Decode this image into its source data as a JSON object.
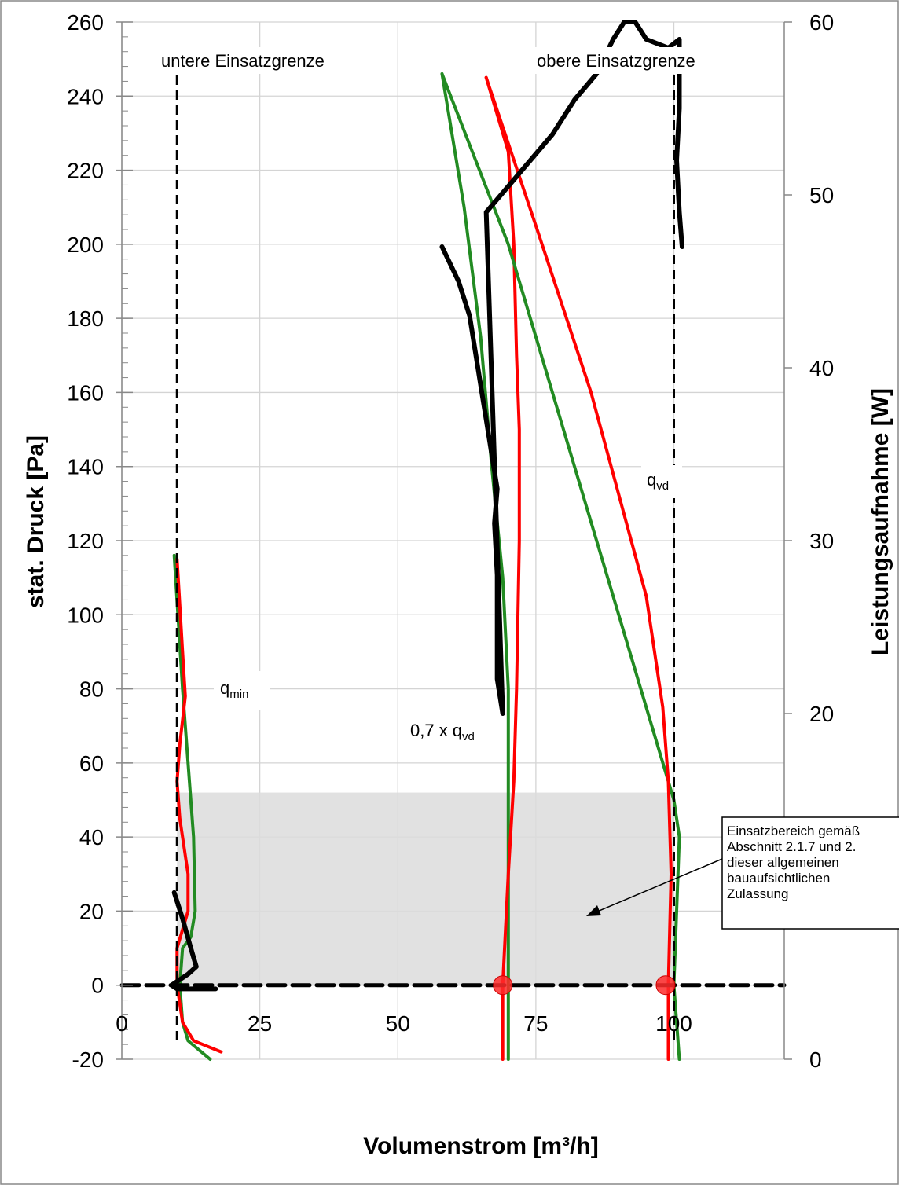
{
  "chart_data": {
    "type": "line",
    "title": "",
    "xlabel": "Volumenstrom [m³/h]",
    "ylabel": "stat. Druck [Pa]",
    "y2label": "Leistungsaufnahme [W]",
    "xlim": [
      0,
      120
    ],
    "ylim": [
      -20,
      260
    ],
    "y2lim": [
      0,
      60
    ],
    "xticks": [
      0,
      25,
      50,
      75,
      100
    ],
    "yticks": [
      -20,
      0,
      20,
      40,
      60,
      80,
      100,
      120,
      140,
      160,
      180,
      200,
      220,
      240,
      260
    ],
    "y2ticks": [
      0,
      20,
      30,
      40,
      50,
      60
    ],
    "grid": true,
    "annotations": {
      "lower_limit": "untere Einsatzgrenze",
      "upper_limit": "obere Einsatzgrenze",
      "qmin_main": "q",
      "qmin_sub": "min",
      "qvd_main": "q",
      "qvd_sub": "vd",
      "qvd07_main": "0,7 x q",
      "qvd07_sub": "vd"
    },
    "callout_lines": [
      "Einsatzbereich gemäß",
      "Abschnitt 2.1.7 und 2.",
      "dieser allgemeinen",
      "bauaufsichtlichen",
      "Zulassung"
    ],
    "operating_range": {
      "x": [
        10,
        100
      ],
      "y": [
        0,
        52
      ]
    },
    "limit_lines_x": [
      10,
      100
    ],
    "operating_points": [
      {
        "x": 69,
        "y": 0
      },
      {
        "x": 98.5,
        "y": 0
      }
    ],
    "series": [
      {
        "color": "#228B22",
        "axis": "left",
        "values": [
          [
            9.5,
            116
          ],
          [
            11,
            80
          ],
          [
            12,
            60
          ],
          [
            13,
            40
          ],
          [
            13.3,
            20
          ],
          [
            12.5,
            13
          ],
          [
            11,
            10
          ],
          [
            10.5,
            0
          ],
          [
            11,
            -10
          ],
          [
            12,
            -15
          ],
          [
            16,
            -20
          ]
        ]
      },
      {
        "color": "#ff0000",
        "axis": "left",
        "values": [
          [
            10,
            115
          ],
          [
            11,
            90
          ],
          [
            11.5,
            78
          ],
          [
            10.5,
            65
          ],
          [
            10,
            55
          ],
          [
            10.5,
            45
          ],
          [
            12,
            30
          ],
          [
            12,
            20
          ],
          [
            11,
            15
          ],
          [
            10,
            10
          ],
          [
            10,
            0
          ],
          [
            11,
            -10
          ],
          [
            13,
            -15
          ],
          [
            18,
            -18
          ]
        ]
      },
      {
        "color": "#000000",
        "axis": "left",
        "values": [
          [
            9.5,
            25
          ],
          [
            11,
            18
          ],
          [
            12.5,
            10
          ],
          [
            13.5,
            5
          ],
          [
            12,
            3
          ],
          [
            10,
            1
          ],
          [
            9,
            0
          ],
          [
            10,
            -1
          ],
          [
            17,
            -1
          ]
        ]
      },
      {
        "color": "#228B22",
        "axis": "left",
        "values": [
          [
            58,
            246
          ],
          [
            62,
            210
          ],
          [
            65,
            175
          ],
          [
            67,
            140
          ],
          [
            69,
            110
          ],
          [
            70,
            80
          ],
          [
            70,
            60
          ],
          [
            70,
            20
          ],
          [
            70,
            0
          ],
          [
            70,
            -20
          ]
        ]
      },
      {
        "color": "#ff0000",
        "axis": "left",
        "values": [
          [
            66,
            245
          ],
          [
            70,
            225
          ],
          [
            71,
            200
          ],
          [
            71.5,
            170
          ],
          [
            72,
            150
          ],
          [
            72,
            120
          ],
          [
            71.5,
            80
          ],
          [
            71,
            55
          ],
          [
            70,
            30
          ],
          [
            69,
            0
          ],
          [
            69,
            -20
          ]
        ]
      },
      {
        "color": "#228B22",
        "axis": "left",
        "values": [
          [
            58,
            246
          ],
          [
            70,
            200
          ],
          [
            80,
            150
          ],
          [
            90,
            100
          ],
          [
            96,
            70
          ],
          [
            100,
            50
          ],
          [
            101,
            40
          ],
          [
            100.5,
            20
          ],
          [
            100,
            0
          ],
          [
            101,
            -20
          ]
        ]
      },
      {
        "color": "#ff0000",
        "axis": "left",
        "values": [
          [
            66,
            245
          ],
          [
            75,
            205
          ],
          [
            85,
            160
          ],
          [
            95,
            105
          ],
          [
            98,
            75
          ],
          [
            99,
            55
          ],
          [
            99.5,
            30
          ],
          [
            99,
            0
          ],
          [
            99,
            -20
          ]
        ]
      },
      {
        "color": "#000000",
        "axis": "right",
        "values": [
          [
            58,
            47
          ],
          [
            61,
            45
          ],
          [
            63,
            43
          ],
          [
            64,
            41
          ],
          [
            65,
            39
          ],
          [
            66,
            37
          ],
          [
            67,
            35
          ],
          [
            68,
            33
          ],
          [
            67.5,
            31
          ],
          [
            68,
            28
          ],
          [
            68,
            25
          ],
          [
            68,
            22
          ],
          [
            69,
            20
          ],
          [
            66,
            49
          ],
          [
            70,
            50.5
          ],
          [
            74,
            52
          ],
          [
            78,
            53.5
          ],
          [
            82,
            55.5
          ],
          [
            86,
            57
          ],
          [
            89,
            59
          ],
          [
            91,
            60
          ],
          [
            93,
            60
          ],
          [
            95,
            59
          ],
          [
            99,
            58.5
          ],
          [
            101,
            59
          ],
          [
            101,
            55
          ],
          [
            100.5,
            52
          ],
          [
            101,
            49
          ],
          [
            101.5,
            47
          ]
        ]
      },
      {
        "color": "#000000",
        "axis": "left",
        "values": [
          [
            0,
            0
          ],
          [
            120,
            0
          ]
        ]
      }
    ]
  }
}
